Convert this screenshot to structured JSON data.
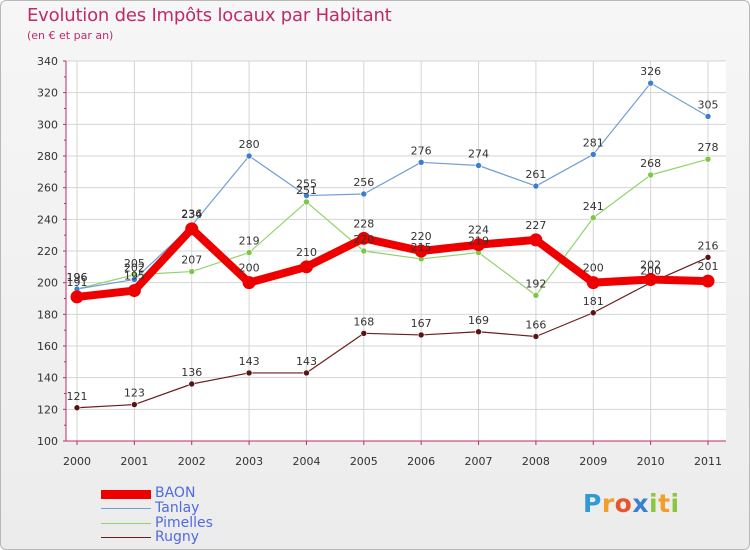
{
  "header": {
    "title": "Evolution des Impôts locaux par Habitant",
    "subtitle": "(en € et par an)"
  },
  "logo": {
    "letters": [
      {
        "char": "P",
        "color": "#2e9bd6"
      },
      {
        "char": "r",
        "color": "#f0a02a"
      },
      {
        "char": "o",
        "color": "#e8552a"
      },
      {
        "char": "x",
        "color": "#3a7fd0"
      },
      {
        "char": "i",
        "color": "#8cc63f"
      },
      {
        "char": "t",
        "color": "#f0a02a"
      },
      {
        "char": "i",
        "color": "#8cc63f"
      }
    ]
  },
  "chart_data": {
    "type": "line",
    "title": "Evolution des Impôts locaux par Habitant",
    "subtitle": "(en € et par an)",
    "xlabel": "",
    "ylabel": "",
    "x": [
      "2000",
      "2001",
      "2002",
      "2003",
      "2004",
      "2005",
      "2006",
      "2007",
      "2008",
      "2009",
      "2010",
      "2011"
    ],
    "ylim": [
      100,
      340
    ],
    "yticks": [
      100,
      120,
      140,
      160,
      180,
      200,
      220,
      240,
      260,
      280,
      300,
      320,
      340
    ],
    "grid": true,
    "legend_position": "bottom-left",
    "series": [
      {
        "name": "Rugny",
        "color": "#6b1e1e",
        "marker": "#5a1212",
        "values": [
          121,
          123,
          136,
          143,
          143,
          168,
          167,
          169,
          166,
          181,
          200,
          216
        ]
      },
      {
        "name": "Pimelles",
        "color": "#92d36a",
        "marker": "#7cc843",
        "values": [
          196,
          205,
          207,
          219,
          251,
          220,
          215,
          219,
          192,
          241,
          268,
          278
        ]
      },
      {
        "name": "Tanlay",
        "color": "#6f9fd3",
        "marker": "#3e7fcc",
        "values": [
          196,
          202,
          236,
          280,
          255,
          256,
          276,
          274,
          261,
          281,
          326,
          305
        ]
      },
      {
        "name": "BAON",
        "color": "#ee0000",
        "marker": "#ee0000",
        "values": [
          191,
          195,
          234,
          200,
          210,
          228,
          220,
          224,
          227,
          200,
          202,
          201
        ]
      }
    ],
    "legend": [
      "BAON",
      "Tanlay",
      "Pimelles",
      "Rugny"
    ]
  }
}
